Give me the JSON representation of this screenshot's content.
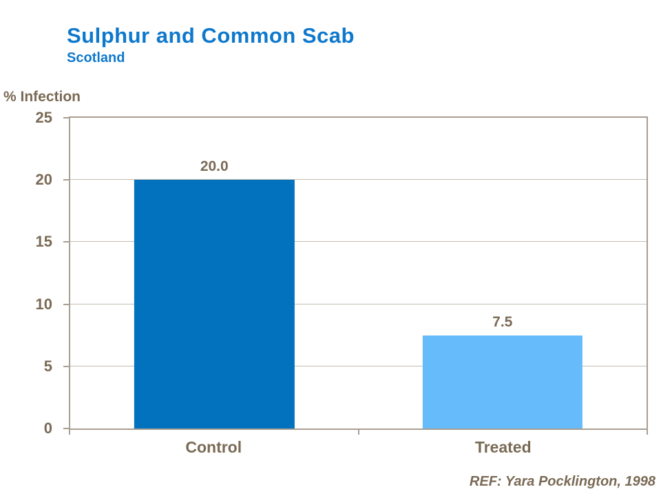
{
  "slide": {
    "title": "Sulphur and Common Scab",
    "subtitle": "Scotland",
    "axis_title": "% Infection",
    "reference": "REF: Yara Pocklington, 1998"
  },
  "colors": {
    "title_blue": "#0E78CC",
    "bar_control_blue": "#0271BE",
    "bar_treated_blue": "#66BBFB",
    "label_brown": "#7A6A55",
    "axis_line": "#A89E91",
    "gridline": "#C3BBB0",
    "background": "#FFFFFF"
  },
  "chart_data": {
    "type": "bar",
    "title": "Sulphur and Common Scab",
    "subtitle": "Scotland",
    "categories": [
      "Control",
      "Treated"
    ],
    "values": [
      20.0,
      7.5
    ],
    "value_labels": [
      "20.0",
      "7.5"
    ],
    "bar_colors": [
      "#0271BE",
      "#66BBFB"
    ],
    "xlabel": "",
    "ylabel": "% Infection",
    "ylim": [
      0,
      25
    ],
    "yticks": [
      0,
      5,
      10,
      15,
      20,
      25
    ],
    "grid": true,
    "legend": false,
    "annotation": "REF: Yara Pocklington, 1998"
  }
}
